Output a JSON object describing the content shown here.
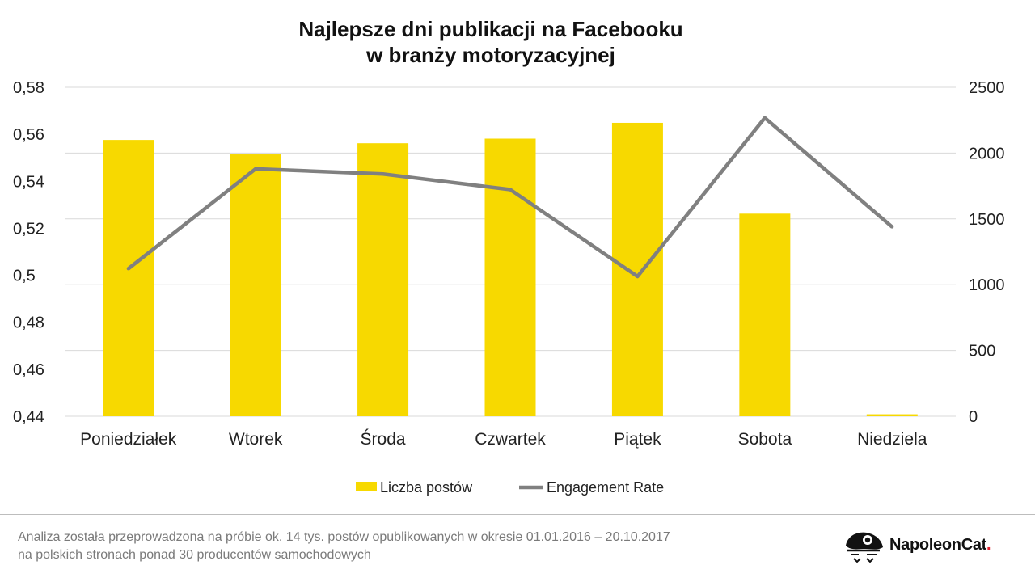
{
  "title_line1": "Najlepsze dni publikacji na Facebooku",
  "title_line2": "w branży motoryzacyjnej",
  "chart_data": {
    "type": "bar+line",
    "categories": [
      "Poniedziałek",
      "Wtorek",
      "Środa",
      "Czwartek",
      "Piątek",
      "Sobota",
      "Niedziela"
    ],
    "series": [
      {
        "name": "Liczba postów",
        "type": "bar",
        "axis": "right",
        "color": "#f7d900",
        "values": [
          2100,
          1990,
          2075,
          2110,
          2230,
          1540,
          15
        ]
      },
      {
        "name": "Engagement Rate",
        "type": "line",
        "axis": "left",
        "color": "#808080",
        "values": [
          0.5028,
          0.5453,
          0.5431,
          0.5365,
          0.4995,
          0.567,
          0.5206
        ]
      }
    ],
    "y_left": {
      "ticks": [
        "0,58",
        "0,56",
        "0,54",
        "0,52",
        "0,5",
        "0,48",
        "0,46",
        "0,44"
      ],
      "min": 0.44,
      "max": 0.58
    },
    "y_right": {
      "ticks": [
        "2500",
        "2000",
        "1500",
        "1000",
        "500",
        "0"
      ],
      "min": 0,
      "max": 2500
    },
    "grid": true,
    "legend": "bottom"
  },
  "footnote_line1": "Analiza została przeprowadzona na próbie ok. 14 tys. postów opublikowanych w okresie 01.01.2016 – 20.10.2017",
  "footnote_line2": "na polskich stronach ponad 30 producentów samochodowych",
  "logo": {
    "text": "NapoleonCat",
    "dot": ".",
    "icon": "napoleoncat-logo-icon"
  }
}
